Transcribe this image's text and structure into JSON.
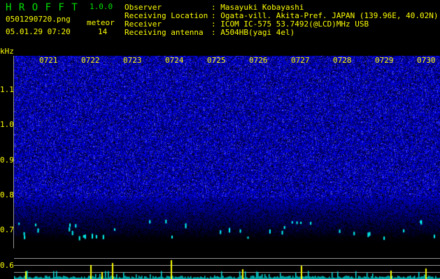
{
  "header": {
    "app_name": "H R O F F T",
    "version": "1.0.0",
    "filename": "0501290720.png",
    "datetime": "05.01.29 07:20",
    "meteor_label": "meteor",
    "meteor_count": "14",
    "info": [
      {
        "label": "Observer",
        "value": "Masayuki Kobayashi"
      },
      {
        "label": "Receiving Location",
        "value": "Ogata-vill. Akita-Pref. JAPAN (139.96E, 40.02N)"
      },
      {
        "label": "Receiver",
        "value": "ICOM IC-575 53.7492(@LCD)MHz USB"
      },
      {
        "label": "Receiving antenna",
        "value": "A504HB(yagi 4el)"
      }
    ]
  },
  "spectrogram": {
    "y_unit": "kHz",
    "y_ticks": [
      "1.1",
      "1.0",
      "0.9",
      "0.8",
      "0.7",
      "0.6"
    ],
    "x_ticks": [
      "0721",
      "0722",
      "0723",
      "0724",
      "0725",
      "0726",
      "0727",
      "0728",
      "0729",
      "0730"
    ],
    "colors": {
      "text": "#ffff00",
      "title": "#00e000",
      "noise": "#2020ff",
      "echo": "#00ffff",
      "grid": "#909090"
    }
  }
}
